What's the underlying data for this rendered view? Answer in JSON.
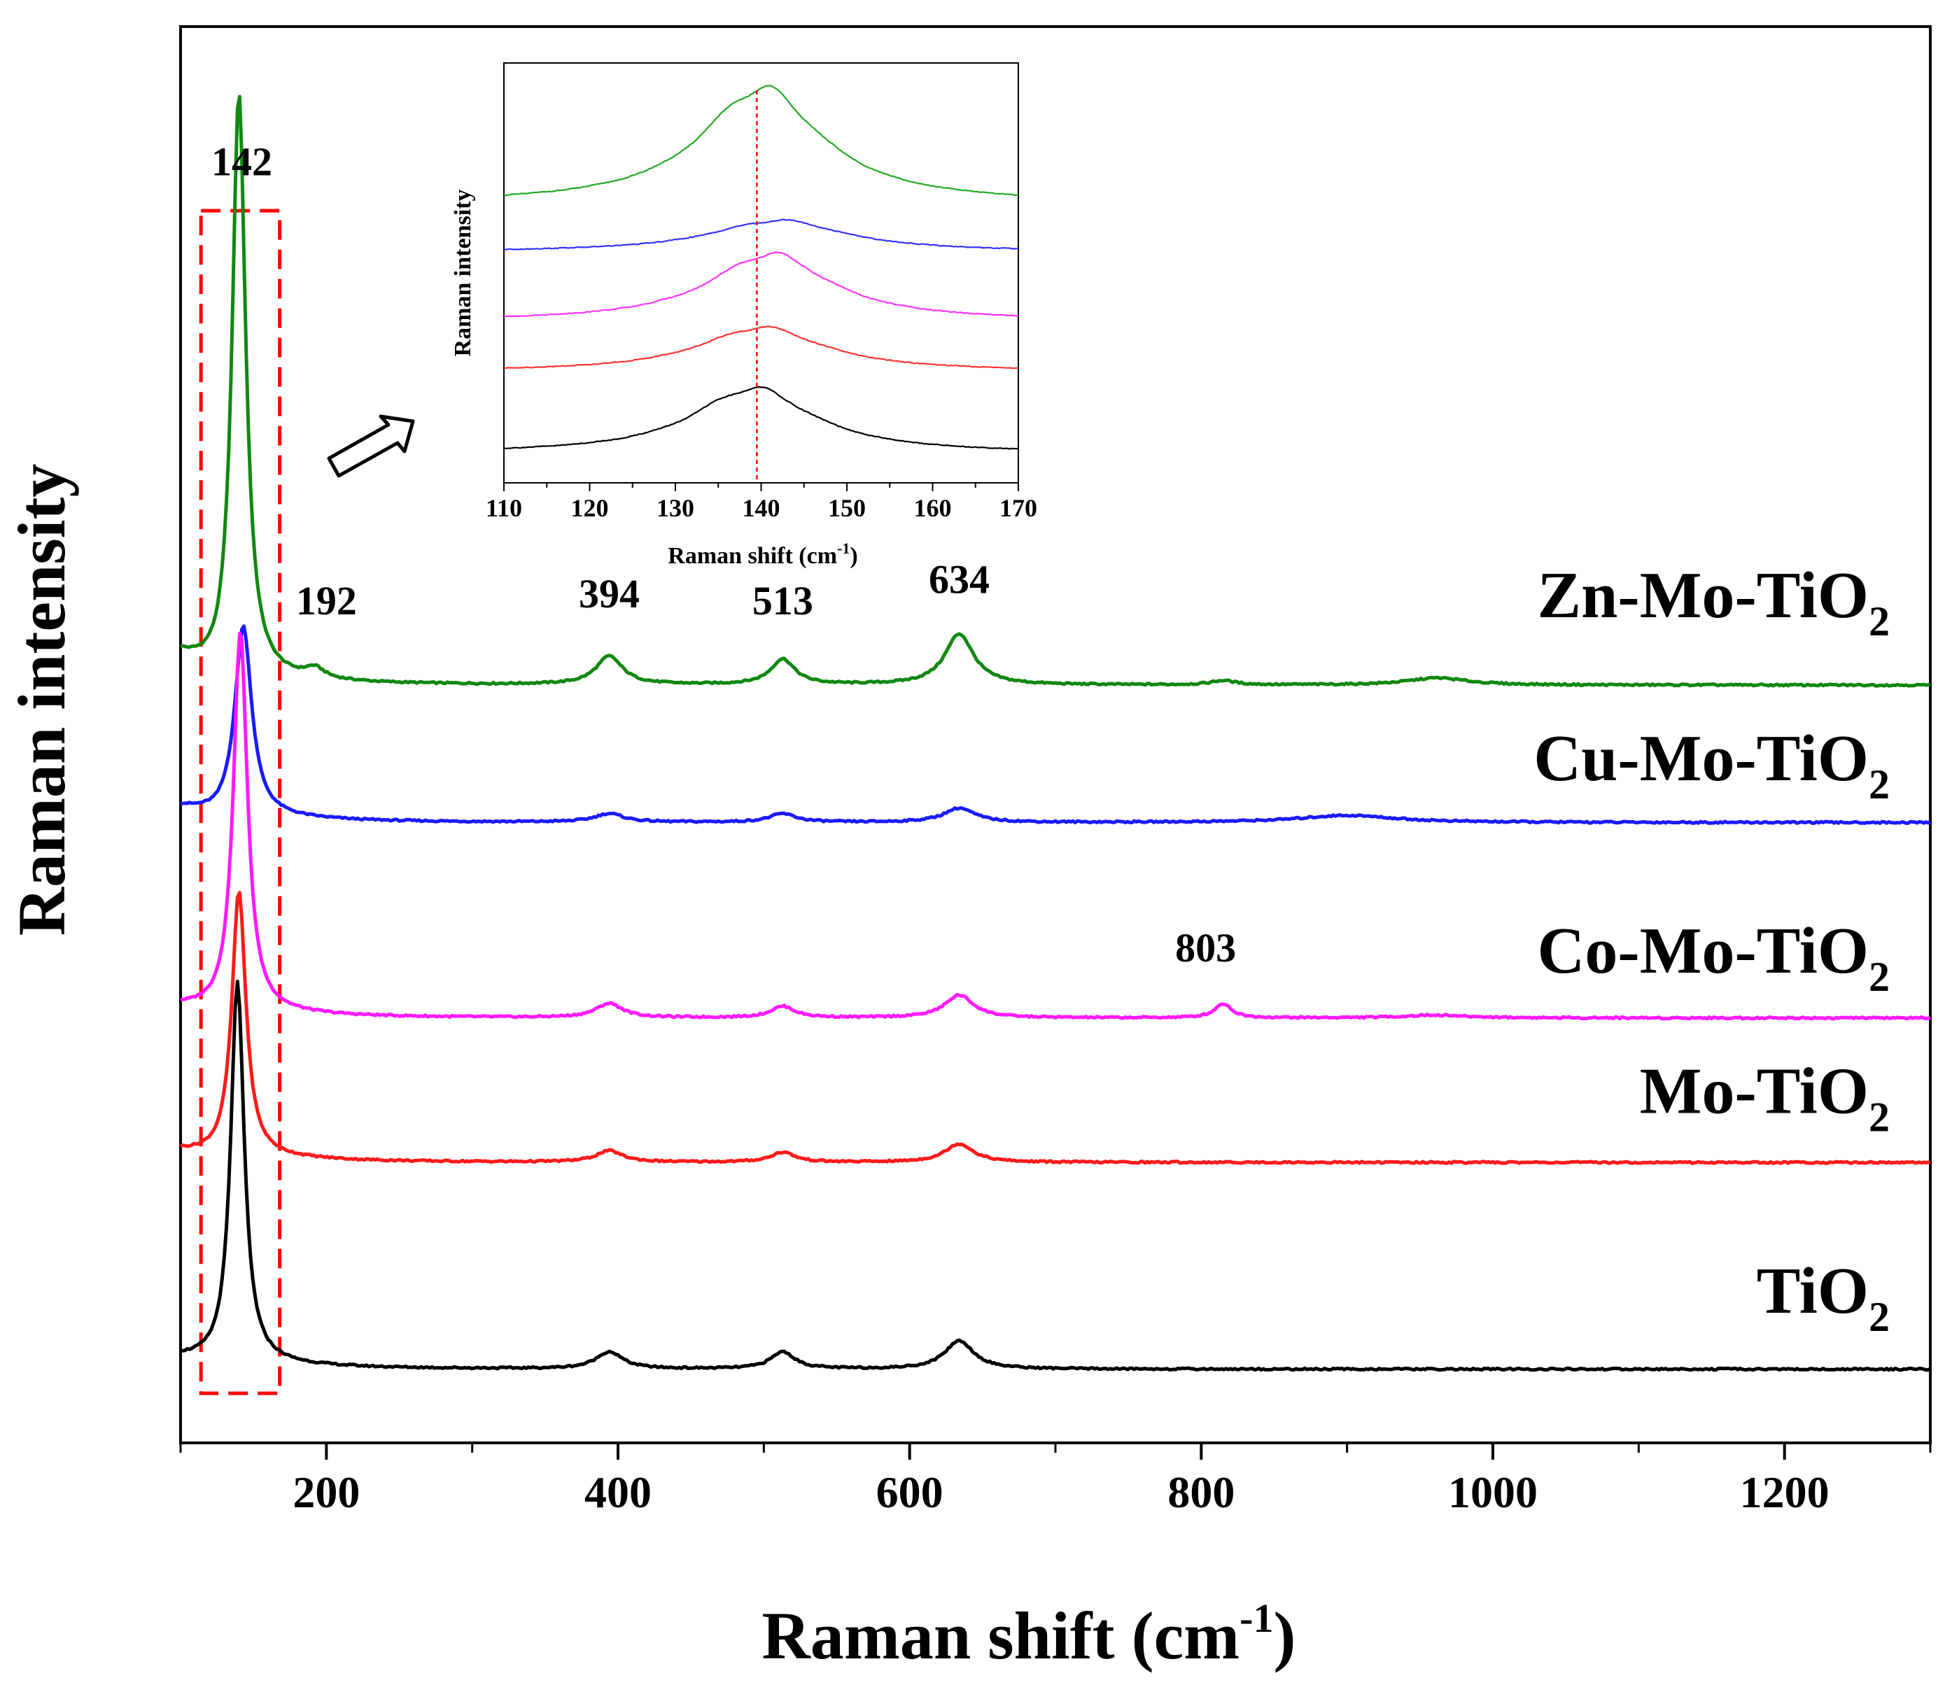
{
  "chart_data": [
    {
      "id": "main",
      "type": "line",
      "xlabel": "Raman shift (cm",
      "xlabel_sup": "-1",
      "xlabel_close": ")",
      "ylabel": "Raman intensity",
      "xlim": [
        100,
        1300
      ],
      "ylim": [
        0,
        10
      ],
      "xticks": [
        200,
        400,
        600,
        800,
        1000,
        1200
      ],
      "xticks_minor": [
        100,
        300,
        500,
        700,
        900,
        1100,
        1300
      ],
      "peak_labels": [
        {
          "text": "142",
          "x": 142
        },
        {
          "text": "192",
          "x": 192
        },
        {
          "text": "394",
          "x": 394
        },
        {
          "text": "513",
          "x": 513
        },
        {
          "text": "634",
          "x": 634
        },
        {
          "text": "803",
          "x": 803
        }
      ],
      "highlight_box": {
        "x_range": [
          114,
          168
        ],
        "y_range": [
          0.35,
          8.7
        ],
        "color": "#ff0000"
      },
      "series": [
        {
          "name": "Zn-Mo-TiO2",
          "label_main": "Zn-Mo-TiO",
          "label_sub": "2",
          "color": "#118811",
          "baseline": 5.35,
          "start": 5.52,
          "end": 5.35,
          "peaks": [
            {
              "x": 140,
              "amp": 4.15,
              "w": 5.6
            },
            {
              "x": 192,
              "amp": 0.07,
              "w": 8
            },
            {
              "x": 394,
              "amp": 0.2,
              "w": 11
            },
            {
              "x": 513,
              "amp": 0.18,
              "w": 10
            },
            {
              "x": 634,
              "amp": 0.36,
              "w": 12
            },
            {
              "x": 815,
              "amp": 0.03,
              "w": 10
            },
            {
              "x": 962,
              "amp": 0.05,
              "w": 25
            }
          ]
        },
        {
          "name": "Cu-Mo-TiO2",
          "label_main": "Cu-Mo-TiO",
          "label_sub": "2",
          "color": "#1a1aff",
          "baseline": 4.38,
          "start": 4.46,
          "end": 4.38,
          "peaks": [
            {
              "x": 143,
              "amp": 1.35,
              "w": 7
            },
            {
              "x": 394,
              "amp": 0.06,
              "w": 12
            },
            {
              "x": 513,
              "amp": 0.06,
              "w": 11
            },
            {
              "x": 634,
              "amp": 0.1,
              "w": 13
            },
            {
              "x": 900,
              "amp": 0.05,
              "w": 40
            }
          ]
        },
        {
          "name": "Co-Mo-TiO2",
          "label_main": "Co-Mo-TiO",
          "label_sub": "2",
          "color": "#ff1aff",
          "baseline": 3.0,
          "start": 3.05,
          "end": 3.0,
          "peaks": [
            {
              "x": 141,
              "amp": 2.7,
              "w": 5.8
            },
            {
              "x": 394,
              "amp": 0.1,
              "w": 11
            },
            {
              "x": 513,
              "amp": 0.08,
              "w": 10
            },
            {
              "x": 634,
              "amp": 0.16,
              "w": 12
            },
            {
              "x": 815,
              "amp": 0.1,
              "w": 7
            },
            {
              "x": 960,
              "amp": 0.02,
              "w": 25
            }
          ]
        },
        {
          "name": "Mo-TiO2",
          "label_main": "Mo-TiO",
          "label_sub": "2",
          "color": "#ff1a1a",
          "baseline": 1.98,
          "start": 2.03,
          "end": 1.98,
          "peaks": [
            {
              "x": 140,
              "amp": 1.88,
              "w": 5.8
            },
            {
              "x": 394,
              "amp": 0.08,
              "w": 11
            },
            {
              "x": 513,
              "amp": 0.07,
              "w": 10
            },
            {
              "x": 634,
              "amp": 0.13,
              "w": 12
            }
          ]
        },
        {
          "name": "TiO2",
          "label_main": "TiO",
          "label_sub": "2",
          "color": "#000000",
          "baseline": 0.52,
          "start": 0.57,
          "end": 0.52,
          "peaks": [
            {
              "x": 139,
              "amp": 2.7,
              "w": 5.6
            },
            {
              "x": 394,
              "amp": 0.12,
              "w": 11
            },
            {
              "x": 513,
              "amp": 0.12,
              "w": 10
            },
            {
              "x": 634,
              "amp": 0.2,
              "w": 12
            }
          ]
        }
      ]
    },
    {
      "id": "inset",
      "type": "line",
      "xlabel": "Raman shift (cm",
      "xlabel_sup": "-1",
      "xlabel_close": ")",
      "ylabel": "Raman intensity",
      "xlim": [
        110,
        170
      ],
      "ylim": [
        0,
        10
      ],
      "xticks": [
        110,
        120,
        130,
        140,
        150,
        160,
        170
      ],
      "reference_line_x": 139.5,
      "reference_line_color": "#ff0000",
      "series": [
        {
          "name": "Zn-Mo-TiO2",
          "color": "#22aa22",
          "baseline": 6.65,
          "peak_x": 140,
          "peak_amp": 2.75,
          "width": 8.5
        },
        {
          "name": "Cu-Mo-TiO2",
          "color": "#3333ff",
          "baseline": 5.5,
          "peak_x": 142,
          "peak_amp": 0.75,
          "width": 9.5
        },
        {
          "name": "Co-Mo-TiO2",
          "color": "#ff33ff",
          "baseline": 3.85,
          "peak_x": 141,
          "peak_amp": 1.6,
          "width": 8.5
        },
        {
          "name": "Mo-TiO2",
          "color": "#ff3333",
          "baseline": 2.65,
          "peak_x": 140,
          "peak_amp": 1.05,
          "width": 8.8
        },
        {
          "name": "TiO2",
          "color": "#000000",
          "baseline": 0.7,
          "peak_x": 139,
          "peak_amp": 1.55,
          "width": 8.5
        }
      ]
    }
  ]
}
